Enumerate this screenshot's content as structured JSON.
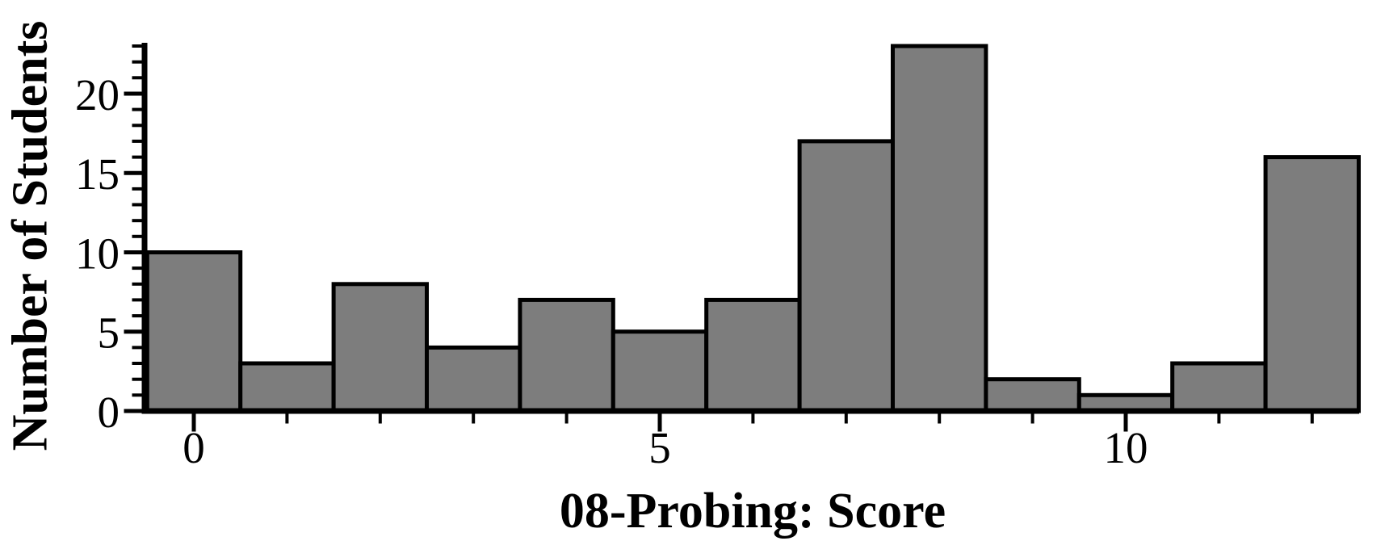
{
  "figure": {
    "background": "#ffffff",
    "text_color": "#000000"
  },
  "chart_data": {
    "type": "bar",
    "variant": "histogram",
    "title": "",
    "xlabel": "08-Probing: Score",
    "ylabel": "Number of Students",
    "categories": [
      0,
      1,
      2,
      3,
      4,
      5,
      6,
      7,
      8,
      9,
      10,
      11,
      12
    ],
    "values": [
      10,
      3,
      8,
      4,
      7,
      5,
      7,
      17,
      23,
      2,
      1,
      3,
      16
    ],
    "bar_width": 1,
    "xlim": [
      -0.55,
      12.5
    ],
    "ylim": [
      0,
      23
    ],
    "x_major_ticks": [
      0,
      5,
      10
    ],
    "x_minor_ticks": [
      0,
      1,
      2,
      3,
      4,
      5,
      6,
      7,
      8,
      9,
      10,
      11,
      12
    ],
    "y_major_ticks": [
      0,
      5,
      10,
      15,
      20
    ],
    "y_minor_tick_step": 1,
    "y_minor_tick_max": 23,
    "grid": false,
    "legend": false,
    "bar_fill": "#7d7d7d",
    "bar_stroke": "#000000",
    "axis_color": "#000000"
  }
}
